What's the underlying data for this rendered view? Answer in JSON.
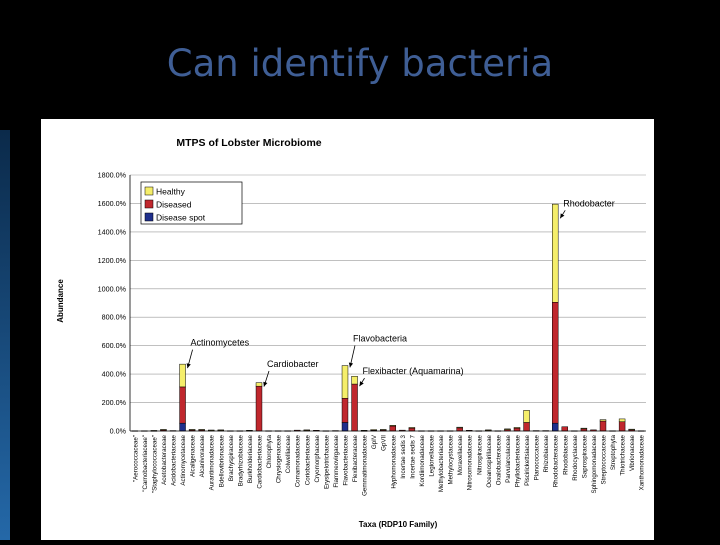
{
  "slide": {
    "title": "Can identify bacteria"
  },
  "chart_data": {
    "type": "bar",
    "stacked": true,
    "title": "MTPS of Lobster Microbiome",
    "xlabel": "Taxa (RDP10 Family)",
    "ylabel": "Abundance",
    "ylim": [
      0,
      1800
    ],
    "yticks": [
      "0.0%",
      "200.0%",
      "400.0%",
      "600.0%",
      "800.0%",
      "1000.0%",
      "1200.0%",
      "1400.0%",
      "1600.0%",
      "1800.0%"
    ],
    "grid": true,
    "legend_position": "top-left",
    "categories": [
      "\"Aerococcaceae\"",
      "\"Carnobacteriaceae\"",
      "\"Staphylococcaceae\"",
      "Acetobacteraceae",
      "Acidobacteriaceae",
      "Actinomycetaceae",
      "Alcaligenaceae",
      "Alcanivoraceae",
      "Aurantimonadaceae",
      "Bdellovibrionaceae",
      "Brachyspiraceae",
      "Bradyrhizobiaceae",
      "Burkholderiaceae",
      "Cardiobacteriaceae",
      "Chlorophyta",
      "Chrysiogenaceae",
      "Colwelliaceae",
      "Comamonadaceae",
      "Coriobacteriaceae",
      "Cryomorphaceae",
      "Erysipelotrichaceae",
      "Flammeovirgaceae",
      "Flavobacteriaceae",
      "Flexibacteraceae",
      "Gemmatimonadaceae",
      "GpIV",
      "GpVII",
      "Hyphomonadaceae",
      "Incertae sedis 3",
      "Incertae sedis 7",
      "Kordiimonadaceae",
      "Legionellaceae",
      "Methylobacteriaceae",
      "Methylocystaceae",
      "Moraxellaceae",
      "Nitrosomonadaceae",
      "Nitrospiraceae",
      "Oceanospirillaceae",
      "Oxalobacteraceae",
      "Parvularculaceae",
      "Phyllobacteriaceae",
      "Piscirickettsiaceae",
      "Planococcaceae",
      "Rhizobiaceae",
      "Rhodobacteraceae",
      "Rhodobiaceae",
      "Rhodocyclaceae",
      "Saprospiraceae",
      "Sphingomonadaceae",
      "Streptococcaceae",
      "Streptophyta",
      "Thiotrichaceae",
      "Vibrionaceae",
      "Xanthomonadaceae"
    ],
    "series": [
      {
        "name": "Healthy",
        "color": "#f5ee6a",
        "values": [
          0,
          0,
          2,
          3,
          0,
          160,
          3,
          3,
          2,
          3,
          0,
          0,
          2,
          25,
          0,
          0,
          0,
          0,
          3,
          0,
          0,
          0,
          230,
          55,
          3,
          5,
          3,
          5,
          0,
          5,
          0,
          0,
          0,
          0,
          5,
          0,
          0,
          3,
          0,
          5,
          5,
          85,
          0,
          0,
          690,
          0,
          0,
          5,
          0,
          10,
          0,
          20,
          5,
          0
        ]
      },
      {
        "name": "Diseased",
        "color": "#c0272d",
        "values": [
          2,
          2,
          2,
          8,
          3,
          255,
          8,
          8,
          5,
          5,
          2,
          2,
          3,
          315,
          2,
          2,
          2,
          6,
          5,
          5,
          2,
          3,
          170,
          330,
          2,
          5,
          8,
          35,
          6,
          20,
          2,
          2,
          2,
          2,
          22,
          5,
          2,
          5,
          2,
          10,
          20,
          60,
          3,
          3,
          850,
          30,
          2,
          15,
          8,
          70,
          2,
          65,
          8,
          2
        ]
      },
      {
        "name": "Disease spot",
        "color": "#1f2f8c",
        "values": [
          0,
          0,
          0,
          0,
          0,
          55,
          0,
          0,
          0,
          0,
          0,
          0,
          0,
          0,
          0,
          0,
          0,
          0,
          0,
          0,
          0,
          0,
          60,
          0,
          0,
          0,
          0,
          0,
          0,
          0,
          0,
          0,
          0,
          0,
          0,
          0,
          0,
          0,
          0,
          0,
          0,
          0,
          0,
          0,
          55,
          0,
          0,
          0,
          0,
          0,
          0,
          0,
          0,
          0
        ]
      }
    ],
    "annotations": [
      {
        "text": "Actinomycetes",
        "category": "Actinomycetaceae",
        "label_value": 600
      },
      {
        "text": "Cardiobacter",
        "category": "Cardiobacteriaceae",
        "label_value": 450
      },
      {
        "text": "Flavobacteria",
        "category": "Flavobacteriaceae",
        "label_value": 630
      },
      {
        "text": "Flexibacter (Aquamarina)",
        "category": "Flexibacteraceae",
        "label_value": 400
      },
      {
        "text": "Rhodobacter",
        "category": "Rhodobacteraceae",
        "label_value": 1580
      }
    ]
  }
}
